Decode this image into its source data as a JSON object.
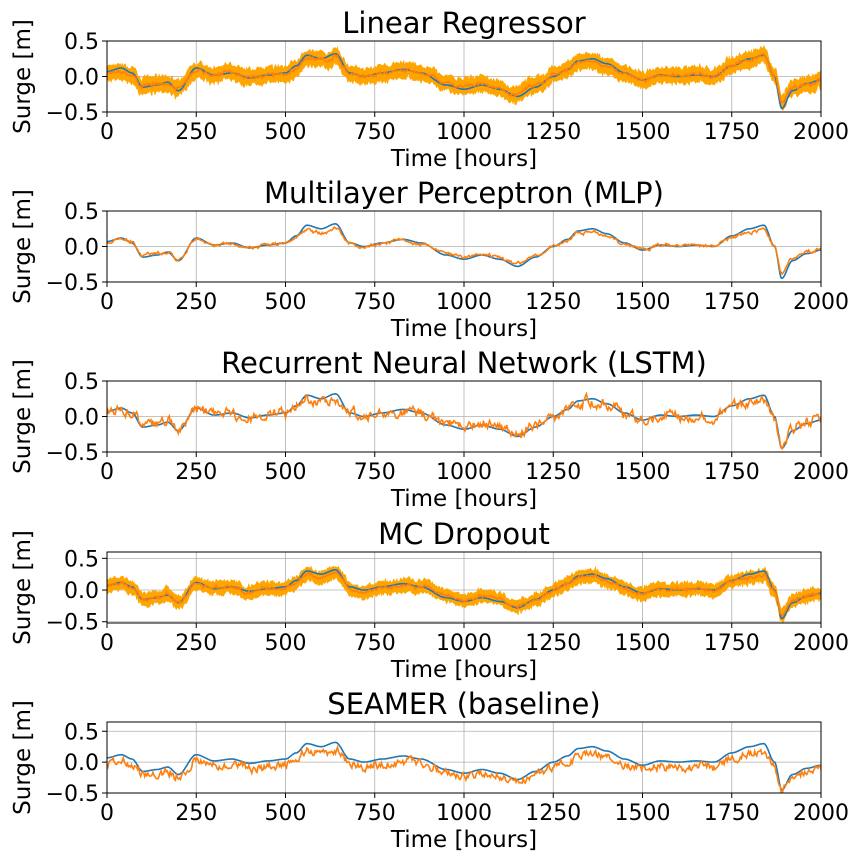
{
  "colors": {
    "observed": "#1f77b4",
    "predicted": "#ff7f0e",
    "band": "#ffa500",
    "grid": "#b0b0b0"
  },
  "chart_data": [
    {
      "type": "line",
      "title": "Linear Regressor",
      "xlabel": "Time [hours]",
      "ylabel": "Surge [m]",
      "xlim": [
        0,
        2000
      ],
      "ylim": [
        -0.5,
        0.5
      ],
      "xticks": [
        "0",
        "250",
        "500",
        "750",
        "1000",
        "1250",
        "1500",
        "1750",
        "2000"
      ],
      "yticks": [
        "0.5",
        "0.0",
        "−0.5"
      ],
      "grid": true,
      "uncertainty_band": true,
      "band_halfwidth": 0.12,
      "pred_noise": 0.03,
      "pred_bias": 0,
      "pred_smooth": 0.85
    },
    {
      "type": "line",
      "title": "Multilayer Perceptron (MLP)",
      "xlabel": "Time [hours]",
      "ylabel": "Surge [m]",
      "xlim": [
        0,
        2000
      ],
      "ylim": [
        -0.5,
        0.5
      ],
      "xticks": [
        "0",
        "250",
        "500",
        "750",
        "1000",
        "1250",
        "1500",
        "1750",
        "2000"
      ],
      "yticks": [
        "0.5",
        "0.0",
        "−0.5"
      ],
      "grid": true,
      "uncertainty_band": false,
      "band_halfwidth": 0,
      "pred_noise": 0.02,
      "pred_bias": 0,
      "pred_smooth": 0.8
    },
    {
      "type": "line",
      "title": "Recurrent Neural Network (LSTM)",
      "xlabel": "Time [hours]",
      "ylabel": "Surge [m]",
      "xlim": [
        0,
        2000
      ],
      "ylim": [
        -0.5,
        0.5
      ],
      "xticks": [
        "0",
        "250",
        "500",
        "750",
        "1000",
        "1250",
        "1500",
        "1750",
        "2000"
      ],
      "yticks": [
        "0.5",
        "0.0",
        "−0.5"
      ],
      "grid": true,
      "uncertainty_band": false,
      "band_halfwidth": 0,
      "pred_noise": 0.035,
      "pred_bias": 0,
      "pred_smooth": 0.6
    },
    {
      "type": "line",
      "title": "MC Dropout",
      "xlabel": "Time [hours]",
      "ylabel": "Surge [m]",
      "xlim": [
        0,
        2000
      ],
      "ylim": [
        -0.52,
        0.6
      ],
      "xticks": [
        "0",
        "250",
        "500",
        "750",
        "1000",
        "1250",
        "1500",
        "1750",
        "2000"
      ],
      "yticks": [
        "0.5",
        "0.0",
        "−0.5"
      ],
      "grid": true,
      "uncertainty_band": true,
      "band_halfwidth": 0.11,
      "pred_noise": 0.03,
      "pred_bias": 0,
      "pred_smooth": 0.85
    },
    {
      "type": "line",
      "title": "SEAMER (baseline)",
      "xlabel": "Time [hours]",
      "ylabel": "Surge [m]",
      "xlim": [
        0,
        2000
      ],
      "ylim": [
        -0.5,
        0.65
      ],
      "xticks": [
        "0",
        "250",
        "500",
        "750",
        "1000",
        "1250",
        "1500",
        "1750",
        "2000"
      ],
      "yticks": [
        "0.5",
        "0.0",
        "−0.5"
      ],
      "grid": true,
      "uncertainty_band": false,
      "band_halfwidth": 0,
      "pred_noise": 0.03,
      "pred_bias": -0.08,
      "pred_smooth": 0.55
    }
  ],
  "observed_series": {
    "x": [
      0,
      40,
      70,
      100,
      140,
      170,
      200,
      250,
      300,
      350,
      400,
      450,
      500,
      530,
      560,
      600,
      640,
      680,
      720,
      770,
      830,
      880,
      950,
      1000,
      1050,
      1100,
      1150,
      1200,
      1250,
      1290,
      1320,
      1360,
      1400,
      1450,
      1500,
      1550,
      1600,
      1650,
      1700,
      1750,
      1800,
      1840,
      1870,
      1890,
      1920,
      1960,
      2000
    ],
    "y": [
      0.07,
      0.12,
      0.05,
      -0.15,
      -0.12,
      -0.08,
      -0.2,
      0.12,
      0.02,
      0.05,
      -0.02,
      0.02,
      0.05,
      0.15,
      0.3,
      0.25,
      0.32,
      0.05,
      0.0,
      0.05,
      0.1,
      0.05,
      -0.12,
      -0.18,
      -0.12,
      -0.18,
      -0.28,
      -0.15,
      0.0,
      0.1,
      0.22,
      0.25,
      0.18,
      0.05,
      -0.05,
      0.02,
      0.0,
      0.02,
      0.0,
      0.15,
      0.25,
      0.3,
      0.0,
      -0.45,
      -0.2,
      -0.1,
      -0.05
    ]
  }
}
